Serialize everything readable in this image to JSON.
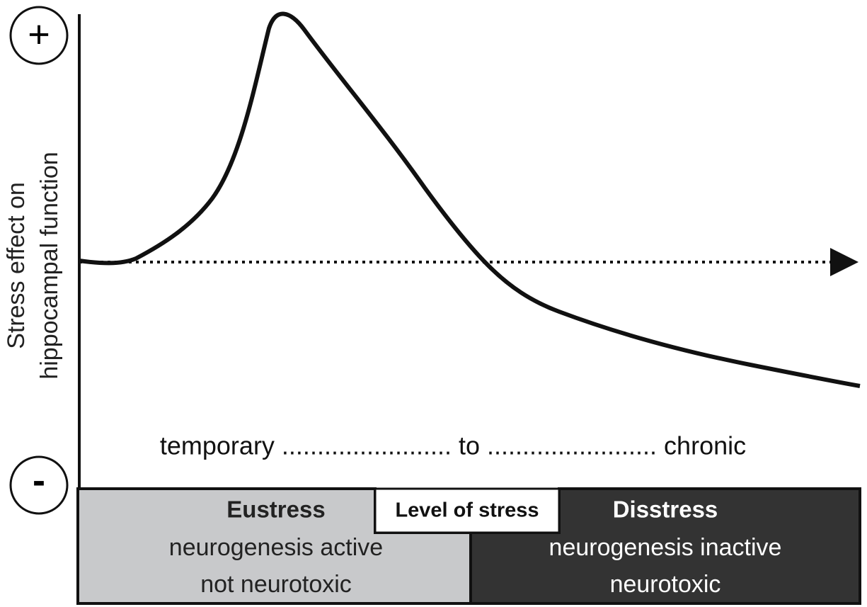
{
  "y_axis": {
    "top": "+",
    "bottom": "-",
    "label": [
      "Stress effect on",
      "hippocampal function"
    ]
  },
  "timeline": "temporary ........................ to ........................ chronic",
  "center_label": "Level of stress",
  "eustress": {
    "title": "Eustress",
    "lines": [
      "neurogenesis active",
      "not neurotoxic"
    ]
  },
  "disstress": {
    "title": "Disstress",
    "lines": [
      "neurogenesis inactive",
      "neurotoxic"
    ]
  }
}
